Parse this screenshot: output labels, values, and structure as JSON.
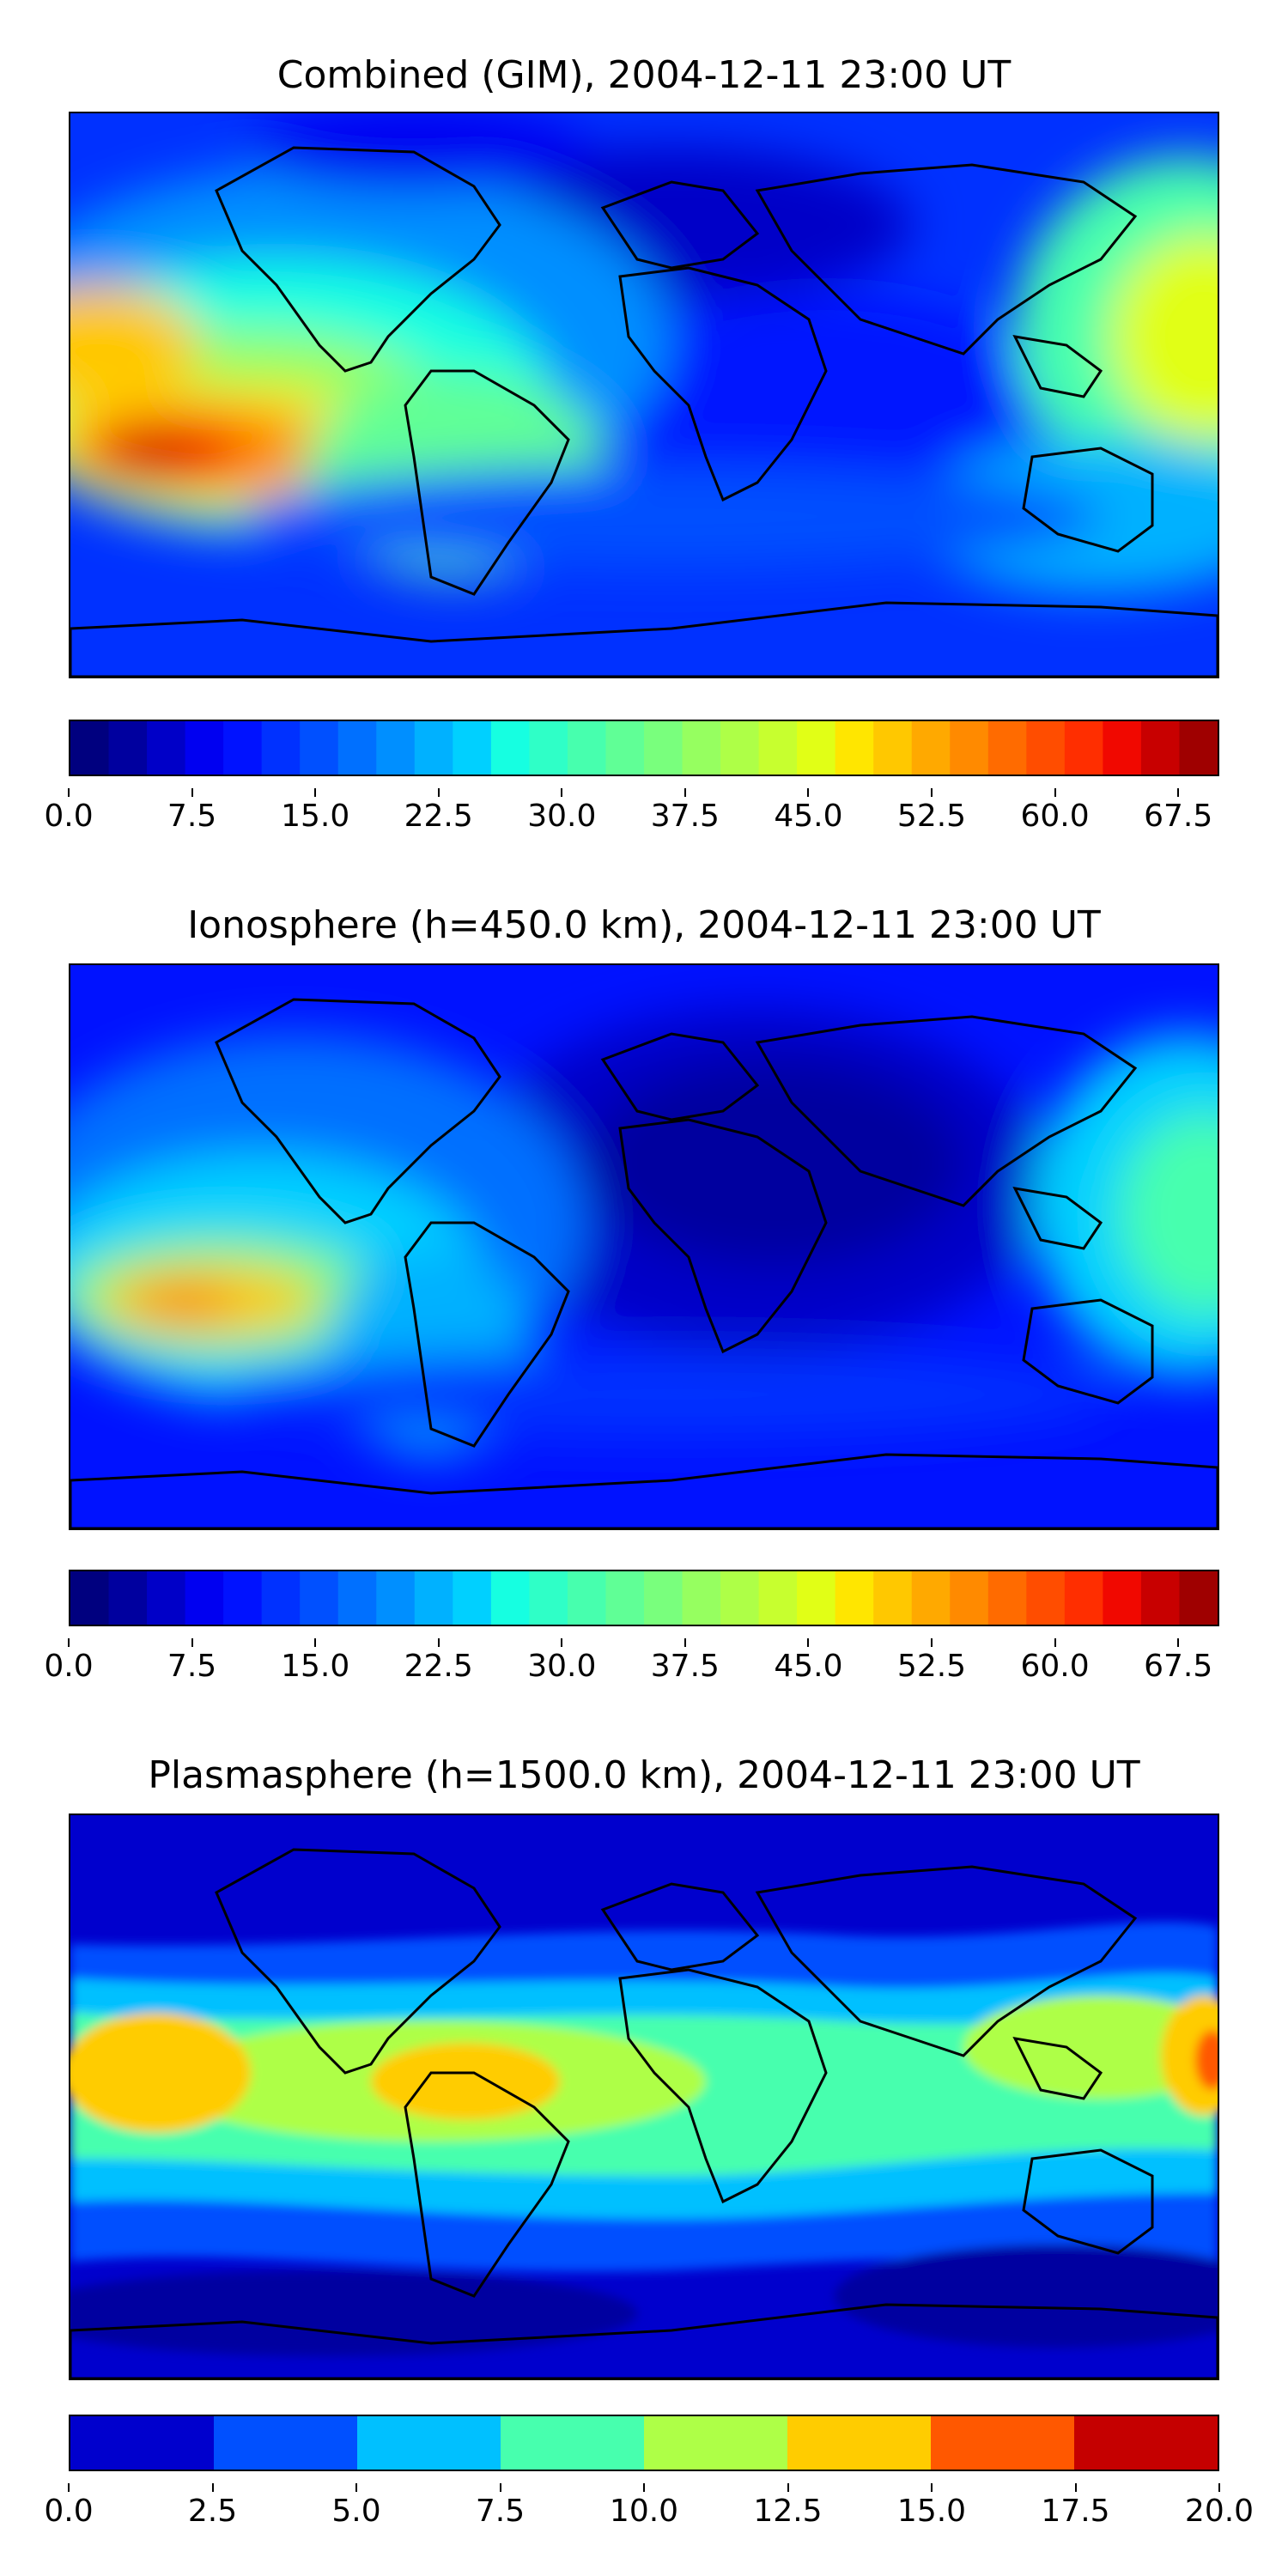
{
  "colors": {
    "jet_30": [
      "#00007f",
      "#00009f",
      "#0000c8",
      "#0000f1",
      "#0012ff",
      "#0031ff",
      "#0050ff",
      "#0070ff",
      "#008fff",
      "#00b1ff",
      "#00d0ff",
      "#16ffe1",
      "#2fffc7",
      "#47ffae",
      "#60ff96",
      "#79ff7d",
      "#96ff60",
      "#aeff47",
      "#c7ff2f",
      "#e1ff16",
      "#ffe600",
      "#ffc800",
      "#ffa900",
      "#ff8a00",
      "#ff6b00",
      "#ff4d00",
      "#ff2e00",
      "#f10800",
      "#c80000",
      "#9f0000"
    ],
    "jet_8": [
      "#0000cd",
      "#0050ff",
      "#00c0ff",
      "#47ffae",
      "#aeff47",
      "#ffcc00",
      "#ff5800",
      "#c50000"
    ]
  },
  "panels": [
    {
      "title": "Combined (GIM), 2004-12-11 23:00 UT",
      "colorbar": {
        "min": 0,
        "max": 70,
        "levels": 30,
        "ticks": [
          "0.0",
          "7.5",
          "15.0",
          "22.5",
          "30.0",
          "37.5",
          "45.0",
          "52.5",
          "60.0",
          "67.5"
        ]
      }
    },
    {
      "title": "Ionosphere  (h=450.0 km), 2004-12-11 23:00 UT",
      "colorbar": {
        "min": 0,
        "max": 70,
        "levels": 30,
        "ticks": [
          "0.0",
          "7.5",
          "15.0",
          "22.5",
          "30.0",
          "37.5",
          "45.0",
          "52.5",
          "60.0",
          "67.5"
        ]
      }
    },
    {
      "title": "Plasmasphere (h=1500.0 km), 2004-12-11 23:00 UT",
      "colorbar": {
        "min": 0,
        "max": 20,
        "levels": 8,
        "ticks": [
          "0.0",
          "2.5",
          "5.0",
          "7.5",
          "10.0",
          "12.5",
          "15.0",
          "17.5",
          "20.0"
        ]
      }
    }
  ]
}
